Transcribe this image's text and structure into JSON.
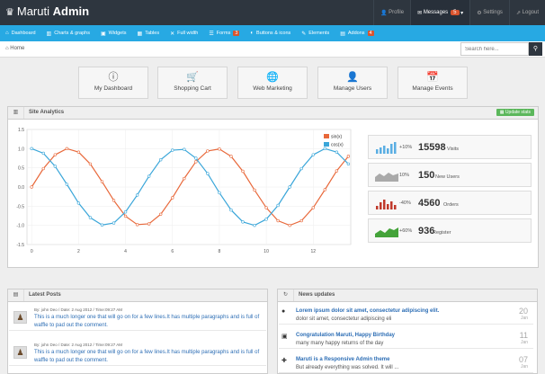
{
  "header": {
    "brand_light": "Maruti",
    "brand_bold": "Admin"
  },
  "user_nav": [
    {
      "label": "Profile",
      "icon": "user-icon"
    },
    {
      "label": "Messages",
      "badge": "5",
      "icon": "envelope-icon"
    },
    {
      "label": "Settings",
      "icon": "gear-icon"
    },
    {
      "label": "Logout",
      "icon": "share-icon"
    }
  ],
  "menu": [
    {
      "label": "Dashboard",
      "icon": "home-icon"
    },
    {
      "label": "Charts & graphs",
      "icon": "bar-chart-icon"
    },
    {
      "label": "Widgets",
      "icon": "inbox-icon"
    },
    {
      "label": "Tables",
      "icon": "th-icon"
    },
    {
      "label": "Full width",
      "icon": "fullscreen-icon"
    },
    {
      "label": "Forms",
      "icon": "list-icon",
      "badge": "3"
    },
    {
      "label": "Buttons & icons",
      "icon": "tint-icon"
    },
    {
      "label": "Elements",
      "icon": "pencil-icon"
    },
    {
      "label": "Addons",
      "icon": "file-icon",
      "badge": "4"
    }
  ],
  "breadcrumb": {
    "home": "Home"
  },
  "search": {
    "placeholder": "Search here..."
  },
  "quick_actions": [
    "My Dashboard",
    "Shopping Cart",
    "Web Marketing",
    "Manage Users",
    "Manage Events"
  ],
  "analytics": {
    "title": "Site Analytics",
    "update_label": "Update stats"
  },
  "chart_data": {
    "type": "line",
    "xlim": [
      -0.2,
      13.6
    ],
    "ylim": [
      -1.5,
      1.5
    ],
    "xticks": [
      0,
      2,
      4,
      6,
      8,
      10,
      12
    ],
    "yticks": [
      1.5,
      1.0,
      0.5,
      0.0,
      -0.5,
      -1.0,
      -1.5
    ],
    "x": [
      0,
      0.5,
      1,
      1.5,
      2,
      2.5,
      3,
      3.5,
      4,
      4.5,
      5,
      5.5,
      6,
      6.5,
      7,
      7.5,
      8,
      8.5,
      9,
      9.5,
      10,
      10.5,
      11,
      11.5,
      12,
      12.5,
      13,
      13.5
    ],
    "series": [
      {
        "name": "sin(x)",
        "color": "#e8683a",
        "values": [
          0,
          0.48,
          0.84,
          1.0,
          0.91,
          0.6,
          0.14,
          -0.35,
          -0.76,
          -0.98,
          -0.96,
          -0.71,
          -0.28,
          0.22,
          0.66,
          0.94,
          0.99,
          0.8,
          0.41,
          -0.08,
          -0.54,
          -0.88,
          -1.0,
          -0.88,
          -0.54,
          -0.07,
          0.42,
          0.8
        ]
      },
      {
        "name": "cos(x)",
        "color": "#3aa6d9",
        "values": [
          1,
          0.88,
          0.54,
          0.07,
          -0.42,
          -0.8,
          -0.99,
          -0.94,
          -0.65,
          -0.21,
          0.28,
          0.71,
          0.96,
          0.98,
          0.75,
          0.35,
          -0.15,
          -0.6,
          -0.91,
          -1.0,
          -0.84,
          -0.48,
          0.0,
          0.48,
          0.84,
          1.0,
          0.91,
          0.6
        ]
      }
    ]
  },
  "stats": [
    {
      "change": "+10%",
      "value": "15598",
      "label": "Visits",
      "color": "#5aaee3",
      "type": "bar"
    },
    {
      "change": "10%",
      "value": "150",
      "label": "New Users",
      "color": "#aaaaaa",
      "type": "area"
    },
    {
      "change": "-40%",
      "value": "4560",
      "label": "Orders",
      "color": "#c0392b",
      "type": "bar"
    },
    {
      "change": "+60%",
      "value": "936",
      "label": "Register",
      "color": "#44a33a",
      "type": "area"
    }
  ],
  "latest_posts": {
    "title": "Latest Posts",
    "items": [
      {
        "meta": "By: john Deo / Date: 2 Aug 2012 / Time:09:27 AM",
        "text": "This is a much longer one that will go on for a few lines.It has multiple paragraphs and is full of waffle to pad out the comment."
      },
      {
        "meta": "By: john Deo / Date: 2 Aug 2012 / Time:09:27 AM",
        "text": "This is a much longer one that will go on for a few lines.It has multiple paragraphs and is full of waffle to pad out the comment."
      }
    ]
  },
  "news": {
    "title": "News updates",
    "items": [
      {
        "title": "Lorem ipsum dolor sit amet, consectetur adipiscing elit.",
        "desc": "dolor sit amet, consectetur adipiscing eli",
        "day": "20",
        "month": "Jan",
        "icon": "check-icon"
      },
      {
        "title": "Congratulation Maruti, Happy Birthday",
        "desc": "many many happy returns of the day",
        "day": "11",
        "month": "Jan",
        "icon": "gift-icon"
      },
      {
        "title": "Maruti is a Responsive Admin theme",
        "desc": "But already everything was solved. It will ...",
        "day": "07",
        "month": "Jan",
        "icon": "plus-icon"
      }
    ]
  }
}
